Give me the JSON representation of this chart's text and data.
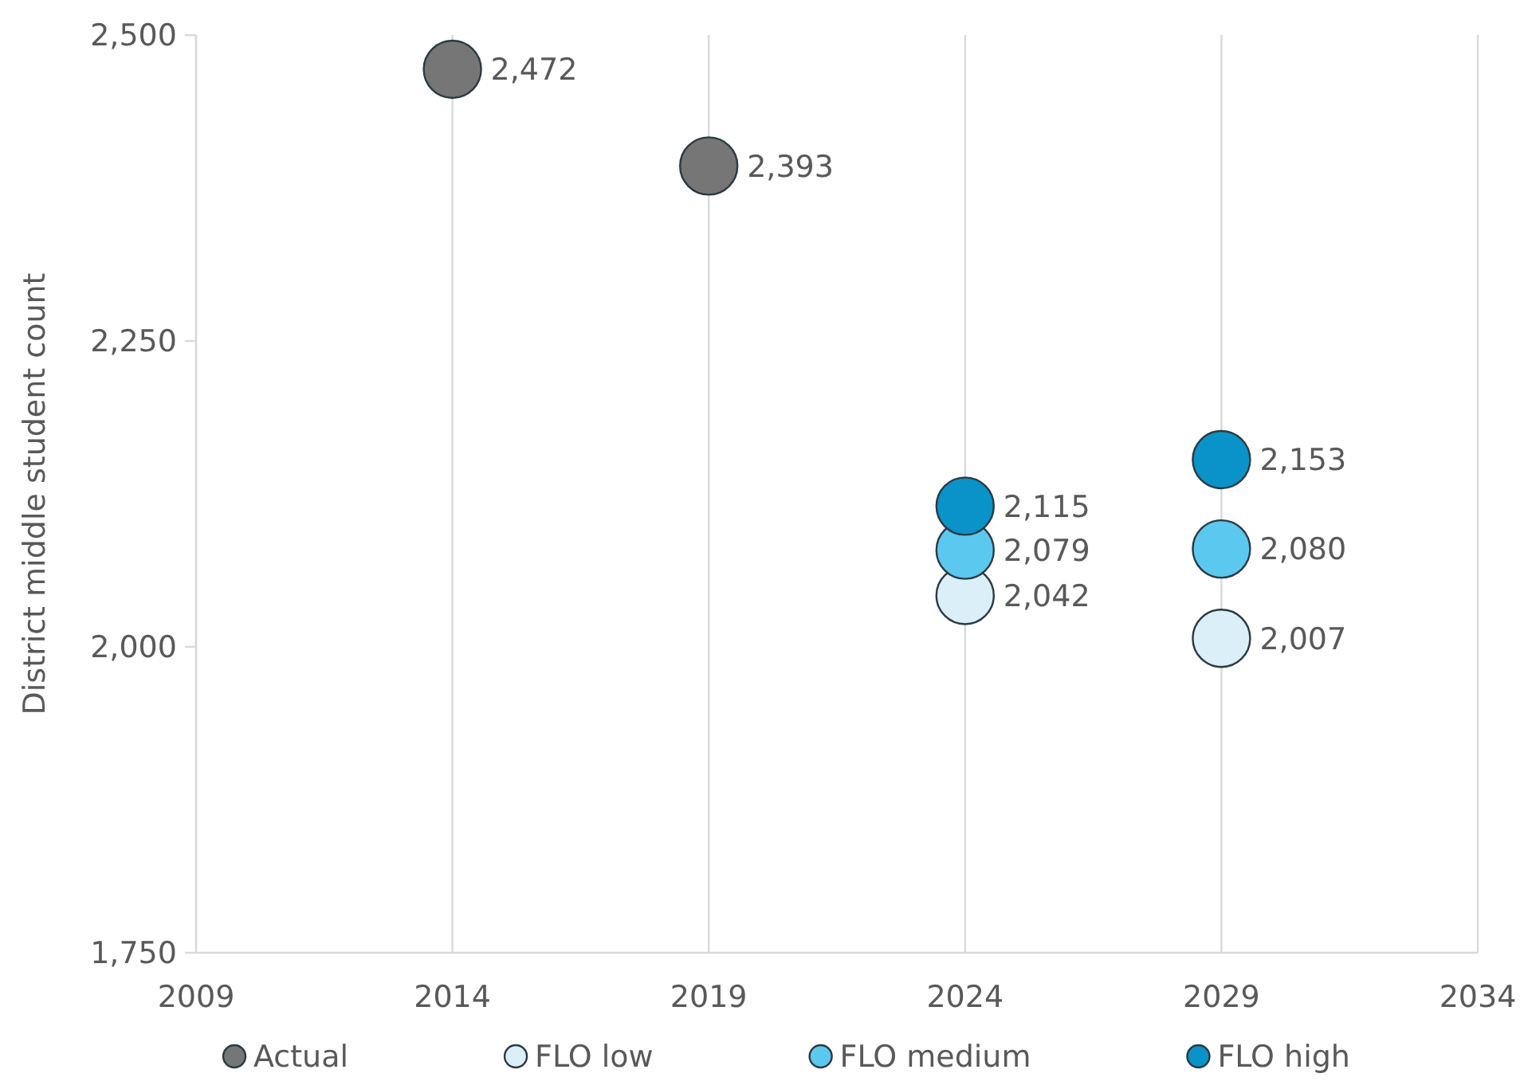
{
  "chart_data": {
    "type": "scatter",
    "ylabel": "District middle student count",
    "xlim": [
      2009,
      2034
    ],
    "xticks": [
      2009,
      2014,
      2019,
      2024,
      2029,
      2034
    ],
    "ylim": [
      1750,
      2500
    ],
    "yticks": [
      {
        "value": 1750,
        "label": "1,750"
      },
      {
        "value": 2000,
        "label": "2,000"
      },
      {
        "value": 2250,
        "label": "2,250"
      },
      {
        "value": 2500,
        "label": "2,500"
      }
    ],
    "grid": "x",
    "legend": "bottom",
    "marker": "circle",
    "series": [
      {
        "name": "Actual",
        "color": "#767676",
        "x": [
          2014,
          2019
        ],
        "values": [
          2472,
          2393
        ],
        "value_labels": [
          "2,472",
          "2,393"
        ]
      },
      {
        "name": "FLO low",
        "color": "#dbeff9",
        "x": [
          2024,
          2029
        ],
        "values": [
          2042,
          2007
        ],
        "value_labels": [
          "2,042",
          "2,007"
        ]
      },
      {
        "name": "FLO medium",
        "color": "#5bc8ef",
        "x": [
          2024,
          2029
        ],
        "values": [
          2079,
          2080
        ],
        "value_labels": [
          "2,079",
          "2,080"
        ]
      },
      {
        "name": "FLO high",
        "color": "#0a93c8",
        "x": [
          2024,
          2029
        ],
        "values": [
          2115,
          2153
        ],
        "value_labels": [
          "2,115",
          "2,153"
        ]
      }
    ]
  }
}
